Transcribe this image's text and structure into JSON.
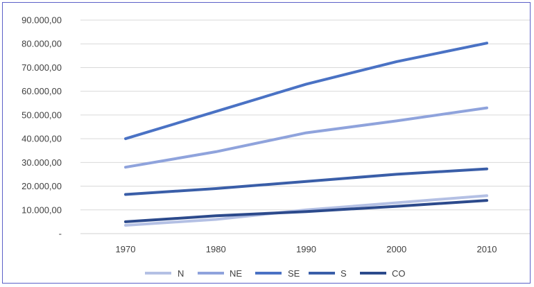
{
  "chart_data": {
    "type": "line",
    "categories": [
      "1970",
      "1980",
      "1990",
      "2000",
      "2010"
    ],
    "series": [
      {
        "name": "N",
        "color": "#b4c0e4",
        "values": [
          3500,
          6000,
          10000,
          13000,
          16000
        ]
      },
      {
        "name": "NE",
        "color": "#8fa3dc",
        "values": [
          28000,
          34500,
          42500,
          47500,
          53000
        ]
      },
      {
        "name": "SE",
        "color": "#4a72c4",
        "values": [
          40000,
          51500,
          63000,
          72500,
          80300
        ]
      },
      {
        "name": "S",
        "color": "#3a5ea8",
        "values": [
          16500,
          19000,
          22000,
          25000,
          27300
        ]
      },
      {
        "name": "CO",
        "color": "#2c4a8c",
        "values": [
          5000,
          7500,
          9300,
          11500,
          14000
        ]
      }
    ],
    "y_ticks": [
      {
        "value": 0,
        "label": "-"
      },
      {
        "value": 10000,
        "label": "10.000,00"
      },
      {
        "value": 20000,
        "label": "20.000,00"
      },
      {
        "value": 30000,
        "label": "30.000,00"
      },
      {
        "value": 40000,
        "label": "40.000,00"
      },
      {
        "value": 50000,
        "label": "50.000,00"
      },
      {
        "value": 60000,
        "label": "60.000,00"
      },
      {
        "value": 70000,
        "label": "70.000,00"
      },
      {
        "value": 80000,
        "label": "80.000,00"
      },
      {
        "value": 90000,
        "label": "90.000,00"
      }
    ],
    "ylim": [
      0,
      90000
    ],
    "grid": true,
    "legend_position": "bottom",
    "title": "",
    "xlabel": "",
    "ylabel": ""
  }
}
